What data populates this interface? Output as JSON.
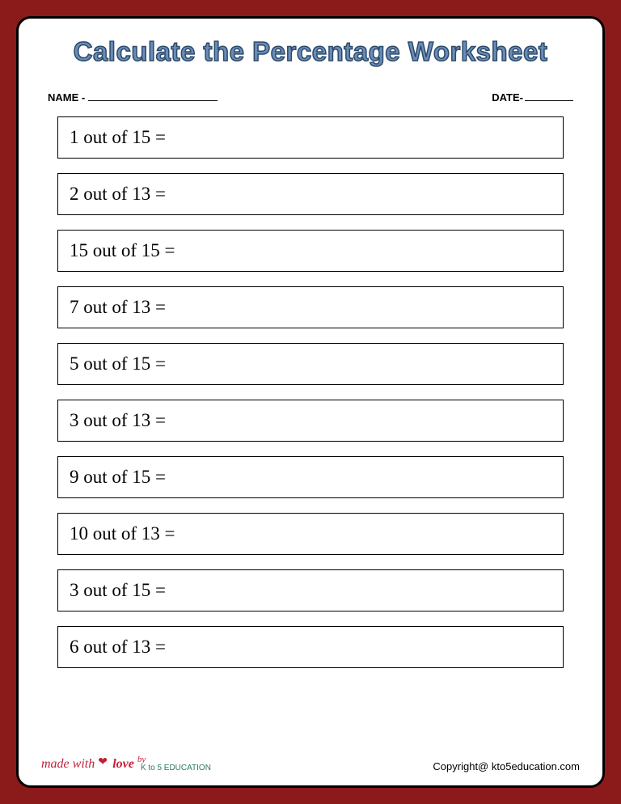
{
  "page": {
    "background_color": "#8b1a1a",
    "paper_color": "#ffffff",
    "border_color": "#000000",
    "border_radius": 18
  },
  "title": {
    "text": "Calculate the Percentage Worksheet",
    "color": "#6b8cb8",
    "stroke_color": "#2a4a6a",
    "fontsize": 33
  },
  "header": {
    "name_label": "NAME -",
    "date_label": "DATE-"
  },
  "problems": [
    "1 out of 15 =",
    "2 out of 13 =",
    "15 out of 15 =",
    "7 out of 13 =",
    "5 out of 15 =",
    "3 out of 13 =",
    "9 out of 15 =",
    "10 out of 13 =",
    "3 out of 15 =",
    "6 out of 13 ="
  ],
  "problem_style": {
    "fontsize": 23,
    "border_color": "#000000",
    "box_spacing": 18
  },
  "footer": {
    "made_with_text": "made with",
    "love_text": "love",
    "by_text": "by",
    "brand_text": "K to 5 EDUCATION",
    "copyright_text": "Copyright@ kto5education.com"
  }
}
